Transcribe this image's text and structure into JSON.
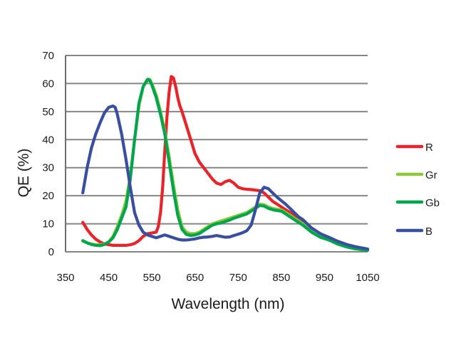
{
  "chart_data": {
    "type": "line",
    "title": "",
    "xlabel": "Wavelength (nm)",
    "ylabel": "QE (%)",
    "xlim": [
      350,
      1050
    ],
    "ylim": [
      0,
      70
    ],
    "xticks": [
      "350",
      "450",
      "550",
      "650",
      "750",
      "850",
      "950",
      "1050"
    ],
    "xtick_values": [
      350,
      450,
      550,
      650,
      750,
      850,
      950,
      1050
    ],
    "yticks": [
      "0",
      "10",
      "20",
      "30",
      "40",
      "50",
      "60",
      "70"
    ],
    "ytick_values": [
      0,
      10,
      20,
      30,
      40,
      50,
      60,
      70
    ],
    "grid": "horizontal",
    "legend_position": "right",
    "series": [
      {
        "name": "R",
        "color": "#e8232a",
        "x": [
          390,
          400,
          410,
          420,
          430,
          440,
          460,
          480,
          490,
          500,
          510,
          520,
          530,
          540,
          560,
          565,
          570,
          575,
          580,
          585,
          590,
          595,
          600,
          605,
          610,
          615,
          620,
          630,
          640,
          650,
          660,
          670,
          680,
          690,
          700,
          710,
          720,
          730,
          740,
          750,
          760,
          770,
          780,
          790,
          800,
          810,
          820,
          830,
          840,
          850,
          860,
          870,
          880,
          890,
          900,
          920,
          940,
          960,
          980,
          1000,
          1020,
          1050
        ],
        "values": [
          10.5,
          8,
          6,
          4.5,
          3.5,
          2.8,
          2.3,
          2.3,
          2.3,
          2.5,
          3,
          4,
          5.5,
          6.5,
          7,
          9,
          14,
          23,
          36,
          48,
          57,
          62.5,
          62,
          59,
          55,
          52,
          50,
          45,
          40,
          35,
          32,
          30,
          28,
          26,
          24.5,
          24,
          25,
          25.5,
          24.5,
          23,
          22.5,
          22.3,
          22.2,
          22,
          21.8,
          21,
          19.5,
          18,
          17,
          16,
          15,
          14,
          13,
          12,
          11,
          8.5,
          6.5,
          5,
          3.5,
          2.5,
          1.7,
          0.8
        ]
      },
      {
        "name": "Gr",
        "color": "#8cc83c",
        "x": [
          390,
          400,
          410,
          420,
          430,
          440,
          450,
          460,
          470,
          480,
          490,
          500,
          510,
          520,
          530,
          540,
          545,
          550,
          560,
          570,
          580,
          590,
          600,
          610,
          620,
          630,
          640,
          650,
          660,
          670,
          680,
          690,
          700,
          710,
          720,
          730,
          740,
          750,
          760,
          770,
          780,
          790,
          800,
          810,
          820,
          830,
          840,
          850,
          860,
          870,
          880,
          890,
          900,
          920,
          940,
          960,
          980,
          1000,
          1020,
          1050
        ],
        "values": [
          3.8,
          3.2,
          2.8,
          2.5,
          2.5,
          2.8,
          3.5,
          5.5,
          9,
          13,
          18,
          27,
          40,
          52,
          59,
          61,
          61.5,
          60,
          56,
          50,
          43,
          34,
          24,
          15,
          9,
          7,
          6.5,
          6.5,
          7,
          8,
          9,
          10,
          10.5,
          11,
          11.5,
          12,
          12.5,
          13,
          13.5,
          14,
          15,
          16,
          17,
          16.8,
          16,
          15.5,
          15.2,
          15,
          14,
          13,
          12,
          11,
          10,
          7.5,
          5.5,
          4.5,
          3,
          2,
          1.3,
          0.6
        ]
      },
      {
        "name": "Gb",
        "color": "#00a54e",
        "x": [
          390,
          400,
          410,
          420,
          430,
          440,
          450,
          460,
          470,
          480,
          490,
          500,
          510,
          520,
          530,
          540,
          545,
          550,
          560,
          570,
          580,
          590,
          600,
          610,
          620,
          630,
          640,
          650,
          660,
          670,
          680,
          690,
          700,
          710,
          720,
          730,
          740,
          750,
          760,
          770,
          780,
          790,
          800,
          810,
          820,
          830,
          840,
          850,
          860,
          870,
          880,
          890,
          900,
          920,
          940,
          960,
          980,
          1000,
          1020,
          1050
        ],
        "values": [
          4,
          3.2,
          2.6,
          2.3,
          2.2,
          2.6,
          3.5,
          5,
          8,
          12,
          16,
          26,
          40,
          53,
          59,
          61.5,
          61.2,
          59.5,
          55,
          49,
          42,
          32,
          22,
          13,
          8,
          6.2,
          5.8,
          6,
          6.5,
          7.5,
          8.5,
          9.5,
          10,
          10.3,
          10.8,
          11.3,
          12,
          12.5,
          13,
          13.5,
          14.5,
          15.5,
          16.5,
          16.3,
          15.5,
          15,
          14.7,
          14.5,
          13.5,
          12.5,
          11.5,
          10.5,
          9.5,
          7,
          5.2,
          4.2,
          2.8,
          1.8,
          1.1,
          0.5
        ]
      },
      {
        "name": "B",
        "color": "#3a4ea0",
        "x": [
          390,
          400,
          410,
          420,
          430,
          440,
          450,
          460,
          465,
          470,
          480,
          490,
          500,
          510,
          520,
          530,
          540,
          550,
          560,
          570,
          580,
          590,
          600,
          610,
          620,
          630,
          640,
          650,
          660,
          670,
          680,
          690,
          700,
          710,
          720,
          730,
          740,
          750,
          760,
          770,
          780,
          790,
          800,
          810,
          820,
          830,
          840,
          850,
          860,
          870,
          880,
          890,
          900,
          920,
          940,
          960,
          980,
          1000,
          1020,
          1050
        ],
        "values": [
          21,
          30,
          37,
          42,
          46,
          49.5,
          51.5,
          52,
          51.5,
          49,
          42,
          33,
          23,
          14,
          9.5,
          7,
          6,
          5.5,
          5,
          5.5,
          6,
          5.5,
          5,
          4.5,
          4.2,
          4.2,
          4.4,
          4.6,
          5,
          5.2,
          5.3,
          5.5,
          5.8,
          5.5,
          5.2,
          5.3,
          5.8,
          6.3,
          6.8,
          7.5,
          9.5,
          15,
          21,
          23,
          22.5,
          21,
          19.5,
          18.2,
          17,
          15.5,
          14,
          12.5,
          11.5,
          8.5,
          6.5,
          5.2,
          3.8,
          2.7,
          1.9,
          1
        ]
      }
    ]
  }
}
